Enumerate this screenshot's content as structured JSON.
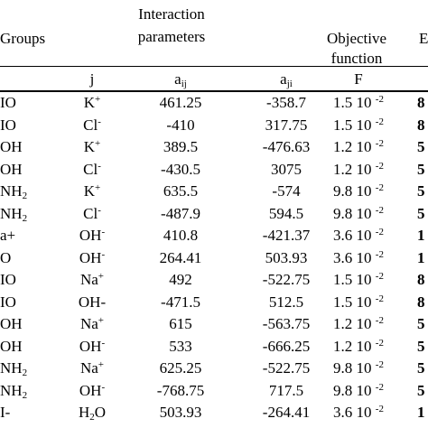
{
  "header": {
    "groups": "Groups",
    "interaction_line1": "Interaction",
    "interaction_line2": "parameters",
    "objective_line1": "Objective",
    "objective_line2": "function",
    "cut_col": "E"
  },
  "subheader": {
    "j": "j",
    "aij_base": "a",
    "aij_sub": "ij",
    "aji_base": "a",
    "aji_sub": "ji",
    "F": "F"
  },
  "rows": [
    {
      "g": "IO",
      "j_base": "K",
      "j_sup": "+",
      "aij": "461.25",
      "aji": "-358.7",
      "f_base": "1.5 10",
      "f_exp": "-2",
      "e": "8"
    },
    {
      "g": "IO",
      "j_base": "Cl",
      "j_sup": "-",
      "aij": "-410",
      "aji": "317.75",
      "f_base": "1.5 10",
      "f_exp": "-2",
      "e": "8"
    },
    {
      "g": "OH",
      "j_base": "K",
      "j_sup": "+",
      "aij": "389.5",
      "aji": "-476.63",
      "f_base": "1.2 10",
      "f_exp": "-2",
      "e": "5"
    },
    {
      "g": "OH",
      "j_base": "Cl",
      "j_sup": "-",
      "aij": "-430.5",
      "aji": "3075",
      "f_base": "1.2 10",
      "f_exp": "-2",
      "e": "5"
    },
    {
      "g": "NH",
      "g_sub": "2",
      "j_base": "K",
      "j_sup": "+",
      "aij": "635.5",
      "aji": "-574",
      "f_base": "9.8 10",
      "f_exp": "-2",
      "e": "5"
    },
    {
      "g": "NH",
      "g_sub": "2",
      "j_base": "Cl",
      "j_sup": "-",
      "aij": "-487.9",
      "aji": "594.5",
      "f_base": "9.8 10",
      "f_exp": "-2",
      "e": "5"
    },
    {
      "g": "a+",
      "j_base": "OH",
      "j_sup": "-",
      "aij": "410.8",
      "aji": "-421.37",
      "f_base": "3.6 10",
      "f_exp": "-2",
      "e": "1"
    },
    {
      "g": "O",
      "j_base": "OH",
      "j_sup": "-",
      "aij": "264.41",
      "aji": "503.93",
      "f_base": "3.6 10",
      "f_exp": "-2",
      "e": "1"
    },
    {
      "g": "IO",
      "j_base": "Na",
      "j_sup": "+",
      "aij": "492",
      "aji": "-522.75",
      "f_base": "1.5 10",
      "f_exp": "-2",
      "e": "8"
    },
    {
      "g": "IO",
      "j_base": "OH-",
      "j_sup": "",
      "aij": "-471.5",
      "aji": "512.5",
      "f_base": "1.5 10",
      "f_exp": "-2",
      "e": "8"
    },
    {
      "g": "OH",
      "j_base": "Na",
      "j_sup": "+",
      "aij": "615",
      "aji": "-563.75",
      "f_base": "1.2 10",
      "f_exp": "-2",
      "e": "5"
    },
    {
      "g": "OH",
      "j_base": "OH",
      "j_sup": "-",
      "aij": "533",
      "aji": "-666.25",
      "f_base": "1.2 10",
      "f_exp": "-2",
      "e": "5"
    },
    {
      "g": "NH",
      "g_sub": "2",
      "j_base": "Na",
      "j_sup": "+",
      "aij": "625.25",
      "aji": "-522.75",
      "f_base": "9.8 10",
      "f_exp": "-2",
      "e": "5"
    },
    {
      "g": "NH",
      "g_sub": "2",
      "j_base": "OH",
      "j_sup": "-",
      "aij": "-768.75",
      "aji": "717.5",
      "f_base": "9.8 10",
      "f_exp": "-2",
      "e": "5"
    },
    {
      "g": "I-",
      "j_base": "H",
      "j_sub": "2",
      "j_tail": "O",
      "aij": "503.93",
      "aji": "-264.41",
      "f_base": "3.6 10",
      "f_exp": "-2",
      "e": "1"
    }
  ]
}
